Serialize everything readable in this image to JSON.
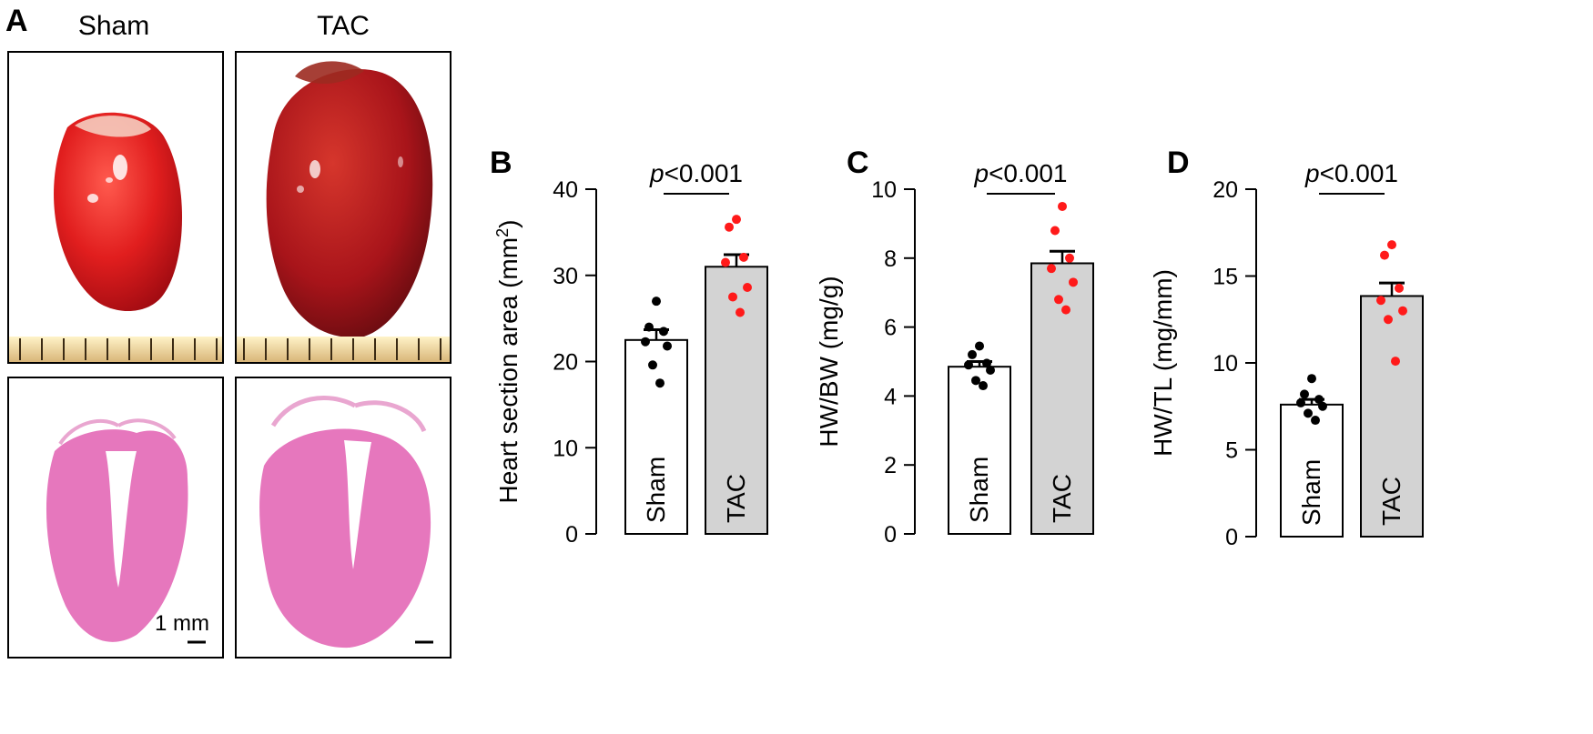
{
  "panel_a": {
    "letter": "A",
    "columns": [
      "Sham",
      "TAC"
    ],
    "scale_bar_label": "1 mm"
  },
  "colors": {
    "sham_bar": "#ffffff",
    "tac_bar": "#d3d3d3",
    "sham_points": "#000000",
    "tac_points": "#ff1a1a",
    "heart_red": "#c8141a",
    "he_pink": "#e25fb2"
  },
  "chart_data": [
    {
      "panel": "B",
      "type": "bar",
      "categories": [
        "Sham",
        "TAC"
      ],
      "values": [
        22.5,
        31.0
      ],
      "sem": [
        1.2,
        1.4
      ],
      "points": [
        [
          27,
          24,
          23.5,
          22.3,
          21.8,
          19.6,
          17.5
        ],
        [
          36.5,
          35.6,
          32.1,
          31.5,
          28.6,
          27.5,
          25.7
        ]
      ],
      "ylabel": "Heart section area (mm",
      "ylabel_sup": "2",
      "ylabel_end": ")",
      "ylim": [
        0,
        40
      ],
      "yticks": [
        0,
        10,
        20,
        30,
        40
      ],
      "annotation": "p<0.001",
      "annotation_italic": "p",
      "annotation_rest": "<0.001"
    },
    {
      "panel": "C",
      "type": "bar",
      "categories": [
        "Sham",
        "TAC"
      ],
      "values": [
        4.85,
        7.85
      ],
      "sem": [
        0.15,
        0.35
      ],
      "points": [
        [
          5.45,
          5.2,
          4.95,
          4.9,
          4.75,
          4.45,
          4.3
        ],
        [
          9.5,
          8.8,
          8.0,
          7.7,
          7.3,
          6.8,
          6.5
        ]
      ],
      "ylabel": "HW/BW (mg/g)",
      "ylabel_sup": "",
      "ylabel_end": "",
      "ylim": [
        0,
        10
      ],
      "yticks": [
        0,
        2,
        4,
        6,
        8,
        10
      ],
      "annotation": "p<0.001",
      "annotation_italic": "p",
      "annotation_rest": "<0.001"
    },
    {
      "panel": "D",
      "type": "bar",
      "categories": [
        "Sham",
        "TAC"
      ],
      "values": [
        7.6,
        13.85
      ],
      "sem": [
        0.3,
        0.75
      ],
      "points": [
        [
          9.1,
          8.2,
          7.9,
          7.7,
          7.5,
          7.1,
          6.7
        ],
        [
          16.8,
          16.2,
          14.3,
          13.6,
          13.0,
          12.5,
          10.1
        ]
      ],
      "ylabel": "HW/TL (mg/mm)",
      "ylabel_sup": "",
      "ylabel_end": "",
      "ylim": [
        0,
        20
      ],
      "yticks": [
        0,
        5,
        10,
        15,
        20
      ],
      "annotation": "p<0.001",
      "annotation_italic": "p",
      "annotation_rest": "<0.001"
    }
  ]
}
